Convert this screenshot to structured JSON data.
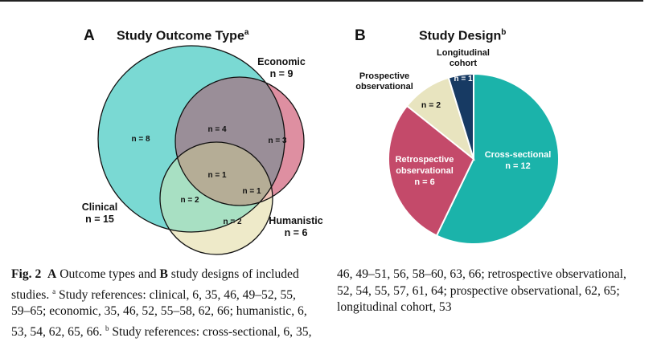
{
  "panel_a": {
    "letter": "A",
    "title": "Study Outcome Type",
    "title_sup": "a",
    "sets": [
      {
        "name": "Clinical",
        "n": "n = 15",
        "color": "#7ad9d3"
      },
      {
        "name": "Economic",
        "n": "n = 9",
        "color": "#de8fa1"
      },
      {
        "name": "Humanistic",
        "n": "n = 6",
        "color": "#eeeac9"
      }
    ],
    "regions": {
      "clinical_only": "n = 8",
      "clinical_economic": "n = 4",
      "economic_only": "n = 3",
      "all_three": "n = 1",
      "clinical_humanistic": "n = 2",
      "economic_humanistic": "n = 1",
      "humanistic_only": "n = 2"
    }
  },
  "panel_b": {
    "letter": "B",
    "title": "Study Design",
    "title_sup": "b"
  },
  "chart_data": {
    "type": "pie",
    "title": "Study Design",
    "slices": [
      {
        "label": "Cross-sectional",
        "value": 12,
        "value_label": "n = 12",
        "color": "#1bb3aa"
      },
      {
        "label": "Retrospective observational",
        "value": 6,
        "value_label": "n = 6",
        "color": "#c44a6a"
      },
      {
        "label": "Prospective observational",
        "value": 2,
        "value_label": "n = 2",
        "color": "#e8e4bf"
      },
      {
        "label": "Longitudinal cohort",
        "value": 1,
        "value_label": "n = 1",
        "color": "#173a63"
      }
    ]
  },
  "caption": {
    "lead": "Fig. 2",
    "a_letter": "A",
    "a_text": " Outcome types and ",
    "b_letter": "B",
    "b_text": " study designs of included",
    "line2_pre": "studies. ",
    "line2_sup": "a",
    "line2_post": " Study references: clinical, 6, 35, 46, 49–52, 55,",
    "line3": "59–65; economic, 35, 46, 52, 55–58, 62, 66; humanistic, 6,",
    "line4_pre": "53, 54, 62, 65, 66. ",
    "line4_sup": "b",
    "line4_post": " Study references: cross-sectional, 6, 35,",
    "r_line1": "46, 49–51, 56, 58–60, 63, 66; retrospective observational,",
    "r_line2": "52, 54, 55, 57, 61, 64; prospective observational, 62, 65;",
    "r_line3": "longitudinal cohort, 53"
  }
}
